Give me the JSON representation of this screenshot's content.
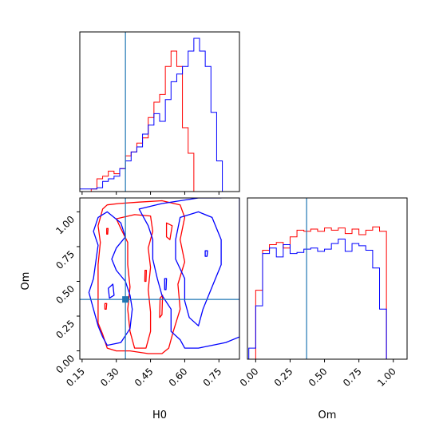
{
  "chart_data": {
    "type": "corner",
    "colors": {
      "series_a": "#ff0000",
      "series_b": "#0000ff",
      "truth": "#1f77b4"
    },
    "params": [
      "H0",
      "Om"
    ],
    "truth": {
      "H0": 0.34,
      "Om": 0.37
    },
    "panels": [
      {
        "id": "h0-marginal",
        "type": "histogram",
        "xlim": [
          0.14,
          0.84
        ],
        "bin_edges": [
          0.14,
          0.165,
          0.19,
          0.215,
          0.24,
          0.265,
          0.29,
          0.315,
          0.34,
          0.365,
          0.39,
          0.415,
          0.44,
          0.465,
          0.49,
          0.515,
          0.54,
          0.565,
          0.59,
          0.615,
          0.64,
          0.665,
          0.69,
          0.715,
          0.74,
          0.765,
          0.79,
          0.815,
          0.84
        ],
        "series": [
          {
            "color_key": "series_a",
            "counts": [
              0,
              0,
              2,
              10,
              12,
              16,
              14,
              18,
              28,
              31,
              38,
              42,
              58,
              70,
              76,
              98,
              110,
              98,
              50,
              30,
              0,
              0,
              0,
              0,
              0,
              0,
              0,
              0
            ]
          },
          {
            "color_key": "series_b",
            "counts": [
              2,
              2,
              2,
              3,
              8,
              10,
              12,
              18,
              24,
              31,
              35,
              45,
              52,
              61,
              55,
              72,
              86,
              92,
              98,
              110,
              120,
              110,
              98,
              62,
              24,
              0,
              0,
              0
            ]
          }
        ],
        "ylim": [
          0,
          125
        ],
        "xticks": [
          0.15,
          0.3,
          0.45,
          0.6,
          0.75
        ],
        "show_ticklabels": false
      },
      {
        "id": "om-marginal",
        "type": "histogram",
        "xlim": [
          -0.06,
          1.1
        ],
        "bin_edges": [
          -0.05,
          0.0,
          0.05,
          0.1,
          0.15,
          0.2,
          0.25,
          0.3,
          0.35,
          0.4,
          0.45,
          0.5,
          0.55,
          0.6,
          0.65,
          0.7,
          0.75,
          0.8,
          0.85,
          0.9,
          0.95,
          1.0,
          1.05,
          1.1
        ],
        "series": [
          {
            "color_key": "series_a",
            "counts": [
              0,
              62,
              98,
              103,
              105,
              100,
              110,
              116,
              115,
              117,
              115,
              118,
              116,
              118,
              113,
              117,
              112,
              116,
              119,
              115,
              0,
              0,
              0
            ]
          },
          {
            "color_key": "series_b",
            "counts": [
              10,
              48,
              95,
              100,
              92,
              103,
              95,
              96,
              99,
              100,
              97,
              99,
              104,
              108,
              97,
              104,
              102,
              98,
              82,
              45,
              0,
              0,
              0
            ]
          }
        ],
        "ylim": [
          0,
          145
        ],
        "xticks": [
          0.0,
          0.25,
          0.5,
          0.75,
          1.0
        ],
        "xtick_labels": [
          "0.00",
          "0.25",
          "0.50",
          "0.75",
          "1.00"
        ],
        "xlabel": "Om"
      },
      {
        "id": "h0-om-2d",
        "type": "contour",
        "xlim": [
          0.14,
          0.84
        ],
        "ylim": [
          -0.06,
          1.1
        ],
        "xticks": [
          0.15,
          0.3,
          0.45,
          0.6,
          0.75
        ],
        "xtick_labels": [
          "0.15",
          "0.30",
          "0.45",
          "0.60",
          "0.75"
        ],
        "yticks": [
          0.0,
          0.25,
          0.5,
          0.75,
          1.0
        ],
        "ytick_labels": [
          "0.00",
          "0.25",
          "0.50",
          "0.75",
          "1.00"
        ],
        "xlabel": "H0",
        "ylabel": "Om",
        "contours": [
          {
            "color_key": "series_a",
            "points": [
              [
                0.24,
                1.02
              ],
              [
                0.26,
                1.05
              ],
              [
                0.31,
                1.06
              ],
              [
                0.4,
                1.07
              ],
              [
                0.5,
                1.08
              ],
              [
                0.58,
                1.05
              ],
              [
                0.6,
                0.96
              ],
              [
                0.58,
                0.8
              ],
              [
                0.6,
                0.64
              ],
              [
                0.57,
                0.48
              ],
              [
                0.58,
                0.3
              ],
              [
                0.55,
                0.14
              ],
              [
                0.53,
                0.02
              ],
              [
                0.5,
                -0.02
              ],
              [
                0.44,
                -0.02
              ],
              [
                0.36,
                0.0
              ],
              [
                0.3,
                0.0
              ],
              [
                0.26,
                0.02
              ],
              [
                0.24,
                0.12
              ],
              [
                0.22,
                0.2
              ],
              [
                0.22,
                0.34
              ],
              [
                0.22,
                0.48
              ],
              [
                0.22,
                0.62
              ],
              [
                0.23,
                0.78
              ],
              [
                0.22,
                0.9
              ],
              [
                0.24,
                1.02
              ]
            ]
          },
          {
            "color_key": "series_a",
            "points": [
              [
                0.3,
                0.95
              ],
              [
                0.38,
                0.98
              ],
              [
                0.45,
                0.97
              ],
              [
                0.46,
                0.86
              ],
              [
                0.44,
                0.74
              ],
              [
                0.45,
                0.6
              ],
              [
                0.44,
                0.44
              ],
              [
                0.45,
                0.28
              ],
              [
                0.45,
                0.14
              ],
              [
                0.43,
                0.02
              ],
              [
                0.38,
                0.02
              ],
              [
                0.36,
                0.14
              ],
              [
                0.35,
                0.3
              ],
              [
                0.36,
                0.46
              ],
              [
                0.35,
                0.62
              ],
              [
                0.35,
                0.78
              ],
              [
                0.32,
                0.88
              ],
              [
                0.3,
                0.95
              ]
            ]
          },
          {
            "color_key": "series_a",
            "points": [
              [
                0.52,
                0.92
              ],
              [
                0.545,
                0.9
              ],
              [
                0.535,
                0.8
              ],
              [
                0.52,
                0.82
              ],
              [
                0.52,
                0.92
              ]
            ]
          },
          {
            "color_key": "series_a",
            "points": [
              [
                0.492,
                0.38
              ],
              [
                0.503,
                0.4
              ],
              [
                0.5,
                0.26
              ],
              [
                0.49,
                0.24
              ],
              [
                0.492,
                0.38
              ]
            ]
          },
          {
            "color_key": "series_a",
            "points": [
              [
                0.426,
                0.58
              ],
              [
                0.432,
                0.58
              ],
              [
                0.43,
                0.5
              ],
              [
                0.425,
                0.5
              ],
              [
                0.426,
                0.58
              ]
            ]
          },
          {
            "color_key": "series_a",
            "points": [
              [
                0.258,
                0.88
              ],
              [
                0.264,
                0.88
              ],
              [
                0.262,
                0.84
              ],
              [
                0.258,
                0.84
              ],
              [
                0.258,
                0.88
              ]
            ]
          },
          {
            "color_key": "series_a",
            "points": [
              [
                0.25,
                0.34
              ],
              [
                0.258,
                0.34
              ],
              [
                0.256,
                0.3
              ],
              [
                0.25,
                0.3
              ],
              [
                0.25,
                0.34
              ]
            ]
          },
          {
            "color_key": "series_b",
            "points": [
              [
                0.4,
                1.02
              ],
              [
                0.5,
                1.06
              ],
              [
                0.58,
                1.08
              ],
              [
                0.66,
                1.1
              ],
              [
                0.76,
                1.1
              ],
              [
                0.8,
                1.12
              ],
              [
                0.84,
                1.1
              ],
              [
                0.84,
                1.0
              ],
              [
                0.84,
                0.6
              ],
              [
                0.84,
                0.1
              ],
              [
                0.78,
                0.06
              ],
              [
                0.72,
                0.04
              ],
              [
                0.66,
                0.02
              ],
              [
                0.6,
                0.02
              ],
              [
                0.58,
                0.08
              ],
              [
                0.54,
                0.14
              ],
              [
                0.54,
                0.3
              ],
              [
                0.5,
                0.4
              ],
              [
                0.48,
                0.52
              ],
              [
                0.46,
                0.66
              ],
              [
                0.46,
                0.8
              ],
              [
                0.44,
                0.9
              ],
              [
                0.42,
                0.96
              ],
              [
                0.4,
                1.02
              ]
            ]
          },
          {
            "color_key": "series_b",
            "points": [
              [
                0.58,
                0.96
              ],
              [
                0.66,
                1.0
              ],
              [
                0.72,
                0.96
              ],
              [
                0.76,
                0.8
              ],
              [
                0.76,
                0.62
              ],
              [
                0.72,
                0.46
              ],
              [
                0.68,
                0.3
              ],
              [
                0.66,
                0.18
              ],
              [
                0.62,
                0.24
              ],
              [
                0.6,
                0.36
              ],
              [
                0.6,
                0.52
              ],
              [
                0.56,
                0.66
              ],
              [
                0.56,
                0.8
              ],
              [
                0.58,
                0.96
              ]
            ]
          },
          {
            "color_key": "series_b",
            "points": [
              [
                0.26,
                0.04
              ],
              [
                0.32,
                0.06
              ],
              [
                0.36,
                0.16
              ],
              [
                0.37,
                0.3
              ],
              [
                0.36,
                0.4
              ],
              [
                0.34,
                0.5
              ],
              [
                0.3,
                0.58
              ],
              [
                0.28,
                0.66
              ],
              [
                0.3,
                0.74
              ],
              [
                0.34,
                0.82
              ],
              [
                0.32,
                0.92
              ],
              [
                0.26,
                1.0
              ],
              [
                0.22,
                0.96
              ],
              [
                0.2,
                0.86
              ],
              [
                0.22,
                0.76
              ],
              [
                0.21,
                0.64
              ],
              [
                0.2,
                0.52
              ],
              [
                0.18,
                0.42
              ],
              [
                0.2,
                0.3
              ],
              [
                0.22,
                0.18
              ],
              [
                0.24,
                0.1
              ],
              [
                0.26,
                0.04
              ]
            ]
          },
          {
            "color_key": "series_b",
            "points": [
              [
                0.512,
                0.52
              ],
              [
                0.52,
                0.52
              ],
              [
                0.518,
                0.44
              ],
              [
                0.512,
                0.44
              ],
              [
                0.512,
                0.52
              ]
            ]
          },
          {
            "color_key": "series_b",
            "points": [
              [
                0.69,
                0.72
              ],
              [
                0.7,
                0.72
              ],
              [
                0.698,
                0.68
              ],
              [
                0.69,
                0.68
              ],
              [
                0.69,
                0.72
              ]
            ]
          },
          {
            "color_key": "series_b",
            "points": [
              [
                0.265,
                0.45
              ],
              [
                0.285,
                0.48
              ],
              [
                0.29,
                0.4
              ],
              [
                0.27,
                0.38
              ],
              [
                0.265,
                0.45
              ]
            ]
          }
        ]
      }
    ]
  }
}
